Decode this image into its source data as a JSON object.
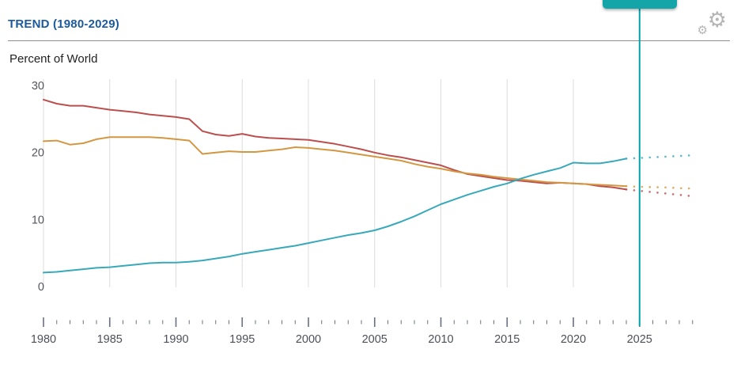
{
  "header": {
    "title": "TREND (1980-2029)"
  },
  "icons": {
    "settings": "gear-icon"
  },
  "chart": {
    "subtitle": "Percent of World"
  },
  "colors": {
    "accent_teal": "#00a4ac",
    "slider_handle": "#14a5a9",
    "title_blue": "#1c5a9e",
    "series_red": "#bb4f4d",
    "series_orange": "#d49741",
    "series_teal": "#38a9ba",
    "gridline": "#dcdcdc",
    "tick": "#6a7080",
    "axis_label": "#4d4f5a"
  },
  "chart_data": {
    "type": "line",
    "title": "TREND (1980-2029)",
    "ylabel": "Percent of World",
    "xlabel": "",
    "ylim": [
      0,
      31
    ],
    "yticks": [
      0,
      10,
      20,
      30
    ],
    "x_range": [
      1980,
      2029
    ],
    "xticks_labeled": [
      1980,
      1985,
      1990,
      1995,
      2000,
      2005,
      2010,
      2015,
      2020,
      2025
    ],
    "grid": "vertical-only",
    "legend_position": "none",
    "current_year_marker": 2025,
    "projection_start_year": 2024,
    "years": [
      1980,
      1981,
      1982,
      1983,
      1984,
      1985,
      1986,
      1987,
      1988,
      1989,
      1990,
      1991,
      1992,
      1993,
      1994,
      1995,
      1996,
      1997,
      1998,
      1999,
      2000,
      2001,
      2002,
      2003,
      2004,
      2005,
      2006,
      2007,
      2008,
      2009,
      2010,
      2011,
      2012,
      2013,
      2014,
      2015,
      2016,
      2017,
      2018,
      2019,
      2020,
      2021,
      2022,
      2023,
      2024,
      2025,
      2026,
      2027,
      2028,
      2029
    ],
    "series": [
      {
        "name": "series-red",
        "color": "#bb4f4d",
        "values": [
          28.0,
          27.4,
          27.1,
          27.1,
          26.8,
          26.5,
          26.3,
          26.1,
          25.8,
          25.6,
          25.4,
          25.1,
          23.3,
          22.8,
          22.6,
          22.9,
          22.5,
          22.3,
          22.2,
          22.1,
          22.0,
          21.7,
          21.4,
          21.0,
          20.6,
          20.1,
          19.7,
          19.4,
          19.0,
          18.6,
          18.2,
          17.5,
          16.9,
          16.6,
          16.3,
          16.0,
          15.9,
          15.7,
          15.5,
          15.6,
          15.5,
          15.4,
          15.1,
          14.9,
          14.6,
          14.4,
          14.2,
          14.0,
          13.8,
          13.6
        ]
      },
      {
        "name": "series-orange",
        "color": "#d49741",
        "values": [
          21.8,
          21.9,
          21.3,
          21.5,
          22.1,
          22.4,
          22.4,
          22.4,
          22.4,
          22.3,
          22.1,
          21.9,
          19.9,
          20.1,
          20.3,
          20.2,
          20.2,
          20.4,
          20.6,
          20.9,
          20.8,
          20.6,
          20.4,
          20.1,
          19.8,
          19.5,
          19.2,
          18.9,
          18.4,
          18.0,
          17.7,
          17.3,
          17.0,
          16.8,
          16.5,
          16.3,
          16.1,
          15.9,
          15.7,
          15.6,
          15.5,
          15.4,
          15.3,
          15.2,
          15.1,
          15.0,
          14.95,
          14.9,
          14.8,
          14.75
        ]
      },
      {
        "name": "series-teal",
        "color": "#38a9ba",
        "values": [
          2.2,
          2.3,
          2.5,
          2.7,
          2.9,
          3.0,
          3.2,
          3.4,
          3.6,
          3.7,
          3.7,
          3.8,
          4.0,
          4.3,
          4.6,
          5.0,
          5.3,
          5.6,
          5.9,
          6.2,
          6.6,
          7.0,
          7.4,
          7.8,
          8.1,
          8.5,
          9.1,
          9.8,
          10.6,
          11.5,
          12.4,
          13.1,
          13.8,
          14.4,
          15.0,
          15.5,
          16.2,
          16.8,
          17.3,
          17.8,
          18.6,
          18.5,
          18.5,
          18.8,
          19.2,
          19.3,
          19.4,
          19.5,
          19.6,
          19.7
        ]
      }
    ]
  }
}
